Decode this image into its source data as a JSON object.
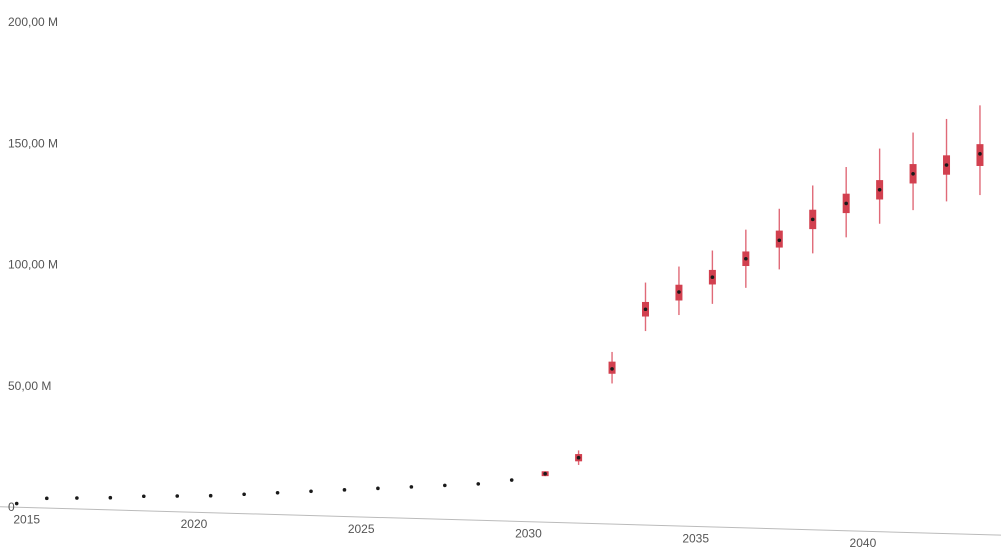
{
  "chart_data": {
    "type": "scatter",
    "title": "",
    "xlabel": "",
    "ylabel": "",
    "xlim": [
      2014.5,
      2043.8
    ],
    "ylim": [
      0,
      200
    ],
    "grid": false,
    "colors": {
      "whisker": "#e06a78",
      "box": "#d2404f",
      "median": "#1a1a1a",
      "axis": "#bbbbbb"
    },
    "y_ticks": [
      {
        "value": 0,
        "label": "0"
      },
      {
        "value": 50,
        "label": "50,00 M"
      },
      {
        "value": 100,
        "label": "100,00 M"
      },
      {
        "value": 150,
        "label": "150,00 M"
      },
      {
        "value": 200,
        "label": "200,00 M"
      }
    ],
    "x_ticks": [
      {
        "value": 2015,
        "label": "2015"
      },
      {
        "value": 2020,
        "label": "2020"
      },
      {
        "value": 2025,
        "label": "2025"
      },
      {
        "value": 2030,
        "label": "2030"
      },
      {
        "value": 2035,
        "label": "2035"
      },
      {
        "value": 2040,
        "label": "2040"
      }
    ],
    "series": [
      {
        "points": [
          {
            "x": 2014.7,
            "median": 1.5,
            "q1": 1.5,
            "q3": 1.5,
            "low": 1.5,
            "high": 1.5
          },
          {
            "x": 2015.6,
            "median": 4.0,
            "q1": 4.0,
            "q3": 4.0,
            "low": 4.0,
            "high": 4.0
          },
          {
            "x": 2016.5,
            "median": 4.5,
            "q1": 4.5,
            "q3": 4.5,
            "low": 4.5,
            "high": 4.5
          },
          {
            "x": 2017.5,
            "median": 5.0,
            "q1": 5.0,
            "q3": 5.0,
            "low": 5.0,
            "high": 5.0
          },
          {
            "x": 2018.5,
            "median": 6.0,
            "q1": 6.0,
            "q3": 6.0,
            "low": 6.0,
            "high": 6.0
          },
          {
            "x": 2019.5,
            "median": 6.5,
            "q1": 6.5,
            "q3": 6.5,
            "low": 6.5,
            "high": 6.5
          },
          {
            "x": 2020.5,
            "median": 7.0,
            "q1": 7.0,
            "q3": 7.0,
            "low": 7.0,
            "high": 7.0
          },
          {
            "x": 2021.5,
            "median": 8.0,
            "q1": 8.0,
            "q3": 8.0,
            "low": 8.0,
            "high": 8.0
          },
          {
            "x": 2022.5,
            "median": 9.0,
            "q1": 9.0,
            "q3": 9.0,
            "low": 9.0,
            "high": 9.0
          },
          {
            "x": 2023.5,
            "median": 10.0,
            "q1": 10.0,
            "q3": 10.0,
            "low": 10.0,
            "high": 10.0
          },
          {
            "x": 2024.5,
            "median": 11.0,
            "q1": 11.0,
            "q3": 11.0,
            "low": 11.0,
            "high": 11.0
          },
          {
            "x": 2025.5,
            "median": 12.0,
            "q1": 12.0,
            "q3": 12.0,
            "low": 12.0,
            "high": 12.0
          },
          {
            "x": 2026.5,
            "median": 13.0,
            "q1": 13.0,
            "q3": 13.0,
            "low": 13.0,
            "high": 13.0
          },
          {
            "x": 2027.5,
            "median": 14.0,
            "q1": 14.0,
            "q3": 14.0,
            "low": 14.0,
            "high": 14.0
          },
          {
            "x": 2028.5,
            "median": 15.0,
            "q1": 15.0,
            "q3": 15.0,
            "low": 15.0,
            "high": 15.0
          },
          {
            "x": 2029.5,
            "median": 17.0,
            "q1": 17.0,
            "q3": 17.0,
            "low": 17.0,
            "high": 17.0
          },
          {
            "x": 2030.5,
            "median": 20.0,
            "q1": 19.0,
            "q3": 21.0,
            "low": 19.0,
            "high": 21.0
          },
          {
            "x": 2031.5,
            "median": 27.0,
            "q1": 25.5,
            "q3": 28.5,
            "low": 24.0,
            "high": 30.0
          },
          {
            "x": 2032.5,
            "median": 64.0,
            "q1": 62.0,
            "q3": 67.0,
            "low": 58.0,
            "high": 71.0
          },
          {
            "x": 2033.5,
            "median": 89.0,
            "q1": 86.0,
            "q3": 92.0,
            "low": 80.0,
            "high": 100.0
          },
          {
            "x": 2034.5,
            "median": 96.5,
            "q1": 93.0,
            "q3": 99.5,
            "low": 87.0,
            "high": 107.0
          },
          {
            "x": 2035.5,
            "median": 103.0,
            "q1": 100.0,
            "q3": 106.0,
            "low": 92.0,
            "high": 114.0
          },
          {
            "x": 2036.5,
            "median": 111.0,
            "q1": 108.0,
            "q3": 114.0,
            "low": 99.0,
            "high": 123.0
          },
          {
            "x": 2037.5,
            "median": 119.0,
            "q1": 116.0,
            "q3": 123.0,
            "low": 107.0,
            "high": 132.0
          },
          {
            "x": 2038.5,
            "median": 128.0,
            "q1": 124.0,
            "q3": 132.0,
            "low": 114.0,
            "high": 142.0
          },
          {
            "x": 2039.5,
            "median": 135.0,
            "q1": 131.0,
            "q3": 139.0,
            "low": 121.0,
            "high": 150.0
          },
          {
            "x": 2040.5,
            "median": 141.0,
            "q1": 137.0,
            "q3": 145.0,
            "low": 127.0,
            "high": 158.0
          },
          {
            "x": 2041.5,
            "median": 148.0,
            "q1": 144.0,
            "q3": 152.0,
            "low": 133.0,
            "high": 165.0
          },
          {
            "x": 2042.5,
            "median": 152.0,
            "q1": 148.0,
            "q3": 156.0,
            "low": 137.0,
            "high": 171.0
          },
          {
            "x": 2043.5,
            "median": 157.0,
            "q1": 152.0,
            "q3": 161.0,
            "low": 140.0,
            "high": 177.0
          }
        ]
      }
    ]
  }
}
